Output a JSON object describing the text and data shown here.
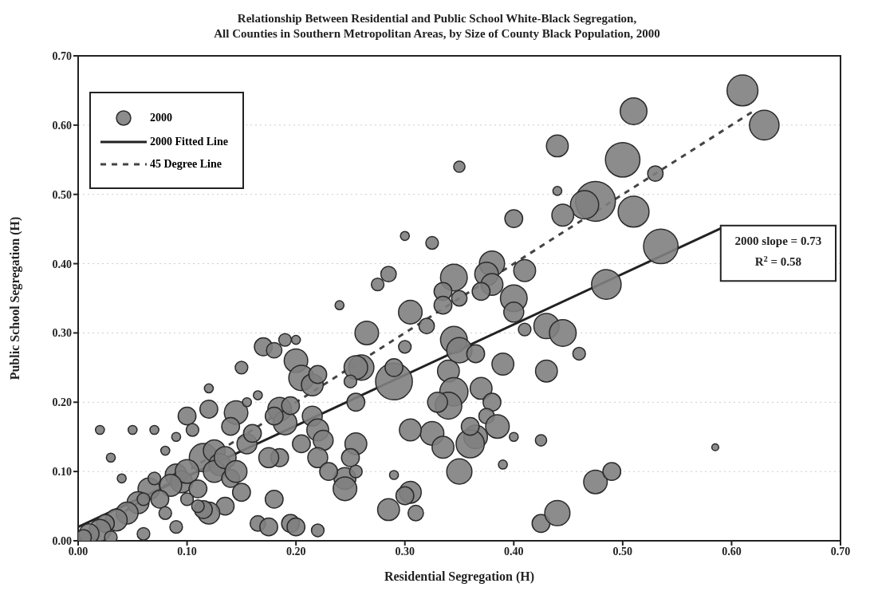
{
  "chart_data": {
    "type": "bubble",
    "title": "Relationship Between Residential and Public School White-Black Segregation,\nAll Counties in Southern Metropolitan Areas, by Size of County Black Population, 2000",
    "xlabel": "Residential Segregation (H)",
    "ylabel": "Public School Segregation (H)",
    "xlim": [
      0,
      0.7
    ],
    "ylim": [
      0,
      0.7
    ],
    "xticks": [
      {
        "value": 0,
        "label": "0.00"
      },
      {
        "value": 0.1,
        "label": "0.10"
      },
      {
        "value": 0.2,
        "label": "0.20"
      },
      {
        "value": 0.3,
        "label": "0.30"
      },
      {
        "value": 0.4,
        "label": "0.40"
      },
      {
        "value": 0.5,
        "label": "0.50"
      },
      {
        "value": 0.6,
        "label": "0.60"
      },
      {
        "value": 0.7,
        "label": "0.70"
      }
    ],
    "yticks": [
      {
        "value": 0,
        "label": "0.00"
      },
      {
        "value": 0.1,
        "label": "0.10"
      },
      {
        "value": 0.2,
        "label": "0.20"
      },
      {
        "value": 0.3,
        "label": "0.30"
      },
      {
        "value": 0.4,
        "label": "0.40"
      },
      {
        "value": 0.5,
        "label": "0.50"
      },
      {
        "value": 0.6,
        "label": "0.60"
      },
      {
        "value": 0.7,
        "label": "0.70"
      }
    ],
    "grid": "y",
    "legend": "top left",
    "annotations": [
      "2000 slope = 0.73",
      "R$^{2}$ = 0.58"
    ],
    "series": [
      {
        "name": "2000",
        "color": "#7f7f7f",
        "x": [
          0.61,
          0.63,
          0.51,
          0.5,
          0.53,
          0.51,
          0.475,
          0.465,
          0.535,
          0.485,
          0.44,
          0.44,
          0.445,
          0.35,
          0.4,
          0.41,
          0.4,
          0.4,
          0.38,
          0.375,
          0.38,
          0.37,
          0.345,
          0.335,
          0.335,
          0.325,
          0.3,
          0.305,
          0.32,
          0.285,
          0.275,
          0.29,
          0.29,
          0.3,
          0.35,
          0.345,
          0.35,
          0.34,
          0.345,
          0.34,
          0.33,
          0.37,
          0.38,
          0.365,
          0.39,
          0.375,
          0.43,
          0.445,
          0.43,
          0.46,
          0.41,
          0.385,
          0.4,
          0.39,
          0.365,
          0.36,
          0.36,
          0.35,
          0.325,
          0.335,
          0.305,
          0.305,
          0.3,
          0.31,
          0.285,
          0.29,
          0.425,
          0.425,
          0.44,
          0.475,
          0.49,
          0.585,
          0.265,
          0.26,
          0.255,
          0.24,
          0.25,
          0.245,
          0.245,
          0.255,
          0.25,
          0.255,
          0.255,
          0.2,
          0.205,
          0.215,
          0.22,
          0.2,
          0.17,
          0.18,
          0.19,
          0.185,
          0.19,
          0.18,
          0.195,
          0.215,
          0.22,
          0.205,
          0.225,
          0.22,
          0.23,
          0.15,
          0.145,
          0.14,
          0.155,
          0.16,
          0.12,
          0.115,
          0.125,
          0.13,
          0.125,
          0.135,
          0.1,
          0.105,
          0.09,
          0.095,
          0.1,
          0.085,
          0.14,
          0.145,
          0.15,
          0.135,
          0.12,
          0.115,
          0.165,
          0.175,
          0.18,
          0.185,
          0.175,
          0.195,
          0.2,
          0.22,
          0.065,
          0.055,
          0.045,
          0.035,
          0.025,
          0.02,
          0.01,
          0.03,
          0.02,
          0.05,
          0.04,
          0.06,
          0.07,
          0.075,
          0.08,
          0.09,
          0.06,
          0.03,
          0.005,
          0.08,
          0.07,
          0.09,
          0.12,
          0.155,
          0.165,
          0.1,
          0.11,
          0.11
        ],
        "values": [
          0.65,
          0.6,
          0.62,
          0.55,
          0.53,
          0.475,
          0.49,
          0.485,
          0.425,
          0.37,
          0.57,
          0.505,
          0.47,
          0.54,
          0.465,
          0.39,
          0.35,
          0.33,
          0.4,
          0.385,
          0.37,
          0.36,
          0.38,
          0.36,
          0.34,
          0.43,
          0.44,
          0.33,
          0.31,
          0.385,
          0.37,
          0.23,
          0.25,
          0.28,
          0.35,
          0.29,
          0.275,
          0.245,
          0.215,
          0.195,
          0.2,
          0.22,
          0.2,
          0.27,
          0.255,
          0.18,
          0.31,
          0.3,
          0.245,
          0.27,
          0.305,
          0.165,
          0.15,
          0.11,
          0.15,
          0.14,
          0.165,
          0.1,
          0.155,
          0.135,
          0.16,
          0.07,
          0.065,
          0.04,
          0.045,
          0.095,
          0.145,
          0.025,
          0.04,
          0.085,
          0.1,
          0.135,
          0.3,
          0.25,
          0.25,
          0.34,
          0.23,
          0.09,
          0.075,
          0.14,
          0.12,
          0.1,
          0.2,
          0.26,
          0.235,
          0.225,
          0.24,
          0.29,
          0.28,
          0.275,
          0.29,
          0.19,
          0.17,
          0.18,
          0.195,
          0.18,
          0.16,
          0.14,
          0.145,
          0.12,
          0.1,
          0.25,
          0.185,
          0.165,
          0.14,
          0.155,
          0.19,
          0.12,
          0.13,
          0.11,
          0.1,
          0.12,
          0.18,
          0.16,
          0.095,
          0.085,
          0.1,
          0.08,
          0.09,
          0.1,
          0.07,
          0.05,
          0.04,
          0.045,
          0.025,
          0.02,
          0.06,
          0.12,
          0.12,
          0.025,
          0.02,
          0.015,
          0.075,
          0.055,
          0.04,
          0.03,
          0.025,
          0.015,
          0.01,
          0.12,
          0.16,
          0.16,
          0.09,
          0.06,
          0.09,
          0.06,
          0.04,
          0.02,
          0.01,
          0.005,
          0.005,
          0.13,
          0.16,
          0.15,
          0.22,
          0.2,
          0.21,
          0.06,
          0.05,
          0.075
        ],
        "sizes": [
          0.6,
          0.55,
          0.45,
          0.75,
          0.15,
          0.6,
          1,
          0.5,
          0.75,
          0.55,
          0.3,
          0.05,
          0.3,
          0.08,
          0.2,
          0.3,
          0.45,
          0.25,
          0.4,
          0.35,
          0.3,
          0.2,
          0.45,
          0.2,
          0.2,
          0.1,
          0.05,
          0.35,
          0.15,
          0.15,
          0.1,
          0.85,
          0.2,
          0.1,
          0.15,
          0.45,
          0.4,
          0.3,
          0.5,
          0.45,
          0.25,
          0.3,
          0.2,
          0.2,
          0.3,
          0.15,
          0.4,
          0.45,
          0.3,
          0.1,
          0.1,
          0.35,
          0.05,
          0.05,
          0.35,
          0.5,
          0.2,
          0.4,
          0.35,
          0.3,
          0.3,
          0.3,
          0.2,
          0.15,
          0.3,
          0.05,
          0.08,
          0.2,
          0.4,
          0.35,
          0.2,
          0.03,
          0.35,
          0.4,
          0.35,
          0.05,
          0.1,
          0.3,
          0.35,
          0.3,
          0.2,
          0.1,
          0.2,
          0.35,
          0.4,
          0.3,
          0.2,
          0.05,
          0.2,
          0.15,
          0.1,
          0.35,
          0.35,
          0.2,
          0.2,
          0.25,
          0.3,
          0.2,
          0.25,
          0.25,
          0.2,
          0.1,
          0.35,
          0.2,
          0.25,
          0.2,
          0.2,
          0.5,
          0.3,
          0.3,
          0.3,
          0.3,
          0.2,
          0.1,
          0.3,
          0.3,
          0.35,
          0.3,
          0.2,
          0.3,
          0.2,
          0.2,
          0.3,
          0.2,
          0.15,
          0.2,
          0.2,
          0.2,
          0.25,
          0.2,
          0.2,
          0.1,
          0.3,
          0.3,
          0.3,
          0.3,
          0.2,
          0.3,
          0.25,
          0.05,
          0.05,
          0.05,
          0.05,
          0.1,
          0.1,
          0.2,
          0.1,
          0.1,
          0.1,
          0.1,
          0.15,
          0.05,
          0.05,
          0.05,
          0.05,
          0.05,
          0.05,
          0.1,
          0.1,
          0.2
        ]
      },
      {
        "name": "2000 Fitted Line",
        "type": "line",
        "color": "#222222",
        "x": [
          0,
          0.59
        ],
        "values": [
          0.02,
          0.451
        ]
      },
      {
        "name": "45 Degree Line",
        "type": "line",
        "line_style": "dashed",
        "color": "#444444",
        "x": [
          0,
          0.62
        ],
        "values": [
          0,
          0.62
        ]
      }
    ]
  }
}
